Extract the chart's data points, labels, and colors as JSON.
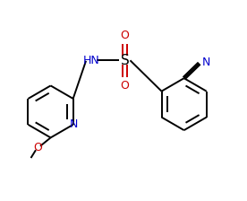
{
  "bg_color": "#ffffff",
  "line_color": "#000000",
  "N_color": "#0000cd",
  "O_color": "#cc0000",
  "figsize": [
    2.76,
    2.24
  ],
  "dpi": 100,
  "lw": 1.4,
  "xlim": [
    0,
    10
  ],
  "ylim": [
    0,
    8
  ]
}
